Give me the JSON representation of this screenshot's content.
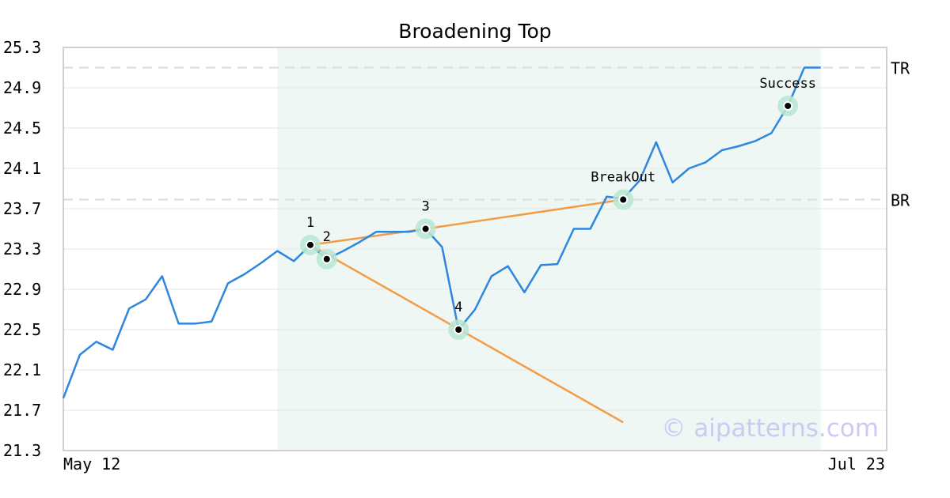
{
  "chart_data": {
    "type": "line",
    "title": "Broadening Top",
    "watermark": "© aipatterns.com",
    "x_tick_labels": [
      "May 12",
      "Jul 23"
    ],
    "y_ticks": [
      21.3,
      21.7,
      22.1,
      22.5,
      22.9,
      23.3,
      23.7,
      24.1,
      24.5,
      24.9,
      25.3
    ],
    "ylim": [
      21.3,
      25.3
    ],
    "x_count": 51,
    "series": [
      {
        "color": "#2e86de",
        "values": [
          21.82,
          22.25,
          22.38,
          22.3,
          22.71,
          22.8,
          23.03,
          22.56,
          22.56,
          22.58,
          22.96,
          23.05,
          23.16,
          23.28,
          23.18,
          23.34,
          23.2,
          23.28,
          23.37,
          23.47,
          23.47,
          23.47,
          23.5,
          23.32,
          22.5,
          22.7,
          23.03,
          23.13,
          22.87,
          23.14,
          23.15,
          23.5,
          23.5,
          23.82,
          23.8,
          23.98,
          24.36,
          23.96,
          24.1,
          24.16,
          24.28,
          24.32,
          24.37,
          24.45,
          24.72,
          25.1,
          25.1
        ]
      }
    ],
    "highlight_range": [
      13,
      46
    ],
    "levels": [
      {
        "label": "TR",
        "value": 25.1
      },
      {
        "label": "BR",
        "value": 23.79
      }
    ],
    "trendlines": [
      {
        "color": "#f39c45",
        "from": [
          15,
          23.34
        ],
        "to": [
          22,
          23.5
        ]
      },
      {
        "color": "#f39c45",
        "from": [
          22,
          23.5
        ],
        "to": [
          34,
          23.79
        ]
      },
      {
        "color": "#f39c45",
        "from": [
          15,
          23.34
        ],
        "to": [
          34,
          21.58
        ]
      }
    ],
    "points": [
      {
        "label": "1",
        "x": 15,
        "y": 23.34
      },
      {
        "label": "2",
        "x": 16,
        "y": 23.2
      },
      {
        "label": "3",
        "x": 22,
        "y": 23.5
      },
      {
        "label": "4",
        "x": 24,
        "y": 22.5
      },
      {
        "label": "BreakOut",
        "x": 34,
        "y": 23.79
      },
      {
        "label": "Success",
        "x": 44,
        "y": 24.72
      }
    ],
    "marker_color": "#b8e6d2",
    "level_color": "#e0e0e0",
    "highlight_color": "#eef7f3",
    "grid": true
  }
}
